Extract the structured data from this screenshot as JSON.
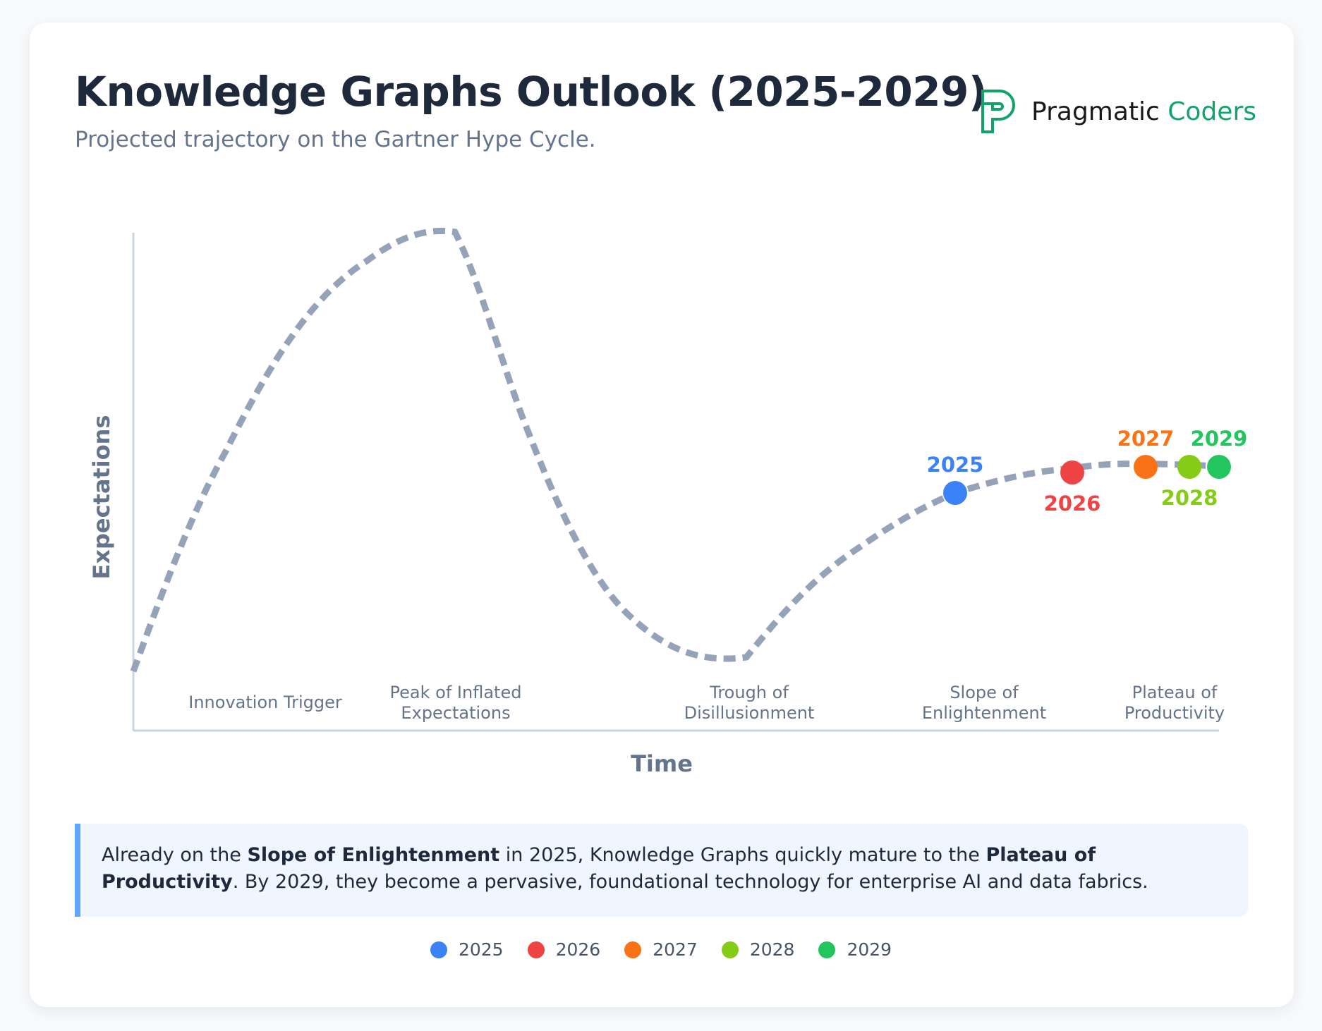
{
  "header": {
    "title": "Knowledge Graphs Outlook (2025-2029)",
    "subtitle": "Projected trajectory on the Gartner Hype Cycle."
  },
  "logo": {
    "word1": "Pragmatic",
    "word2": "Coders",
    "color": "#10a36a"
  },
  "chart_data": {
    "type": "line",
    "title": "Knowledge Graphs Outlook (2025-2029)",
    "xlabel": "Time",
    "ylabel": "Expectations",
    "categories": [
      "Innovation Trigger",
      "Peak of Inflated Expectations",
      "Trough of Disillusionment",
      "Slope of Enlightenment",
      "Plateau of Productivity"
    ],
    "category_lines": [
      [
        "Innovation Trigger"
      ],
      [
        "Peak of Inflated",
        "Expectations"
      ],
      [
        "Trough of",
        "Disillusionment"
      ],
      [
        "Slope of",
        "Enlightenment"
      ],
      [
        "Plateau of",
        "Productivity"
      ]
    ],
    "curve_style": "dashed",
    "curve_color": "#94a3b8",
    "points": [
      {
        "year": "2025",
        "phase": "Slope of Enlightenment",
        "color": "#3b82f6",
        "label_pos": "above"
      },
      {
        "year": "2026",
        "phase": "Slope of Enlightenment",
        "color": "#ef4444",
        "label_pos": "below"
      },
      {
        "year": "2027",
        "phase": "Plateau of Productivity",
        "color": "#f97316",
        "label_pos": "above"
      },
      {
        "year": "2028",
        "phase": "Plateau of Productivity",
        "color": "#84cc16",
        "label_pos": "below"
      },
      {
        "year": "2029",
        "phase": "Plateau of Productivity",
        "color": "#22c55e",
        "label_pos": "above"
      }
    ],
    "legend_position": "bottom",
    "grid": false
  },
  "callout": {
    "t1": "Already on the ",
    "b1": "Slope of Enlightenment",
    "t2": " in 2025, Knowledge Graphs quickly mature to the ",
    "b2": "Plateau of Productivity",
    "t3": ". By 2029, they become a pervasive, foundational technology for enterprise AI and data fabrics."
  }
}
